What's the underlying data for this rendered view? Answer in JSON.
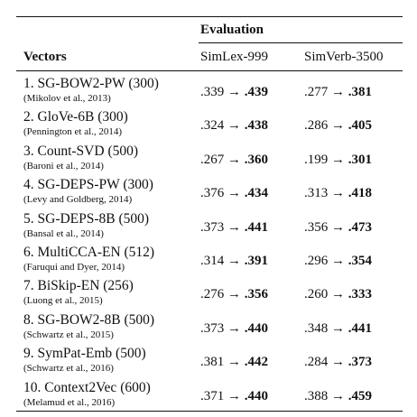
{
  "table": {
    "group_header": "Evaluation",
    "columns": [
      "Vectors",
      "SimLex-999",
      "SimVerb-3500"
    ],
    "arrow": "→",
    "rows": [
      {
        "name": "1. SG-BOW2-PW (300)",
        "citation": "(Mikolov et al., 2013)",
        "simlex": [
          ".339",
          ".439"
        ],
        "simverb": [
          ".277",
          ".381"
        ]
      },
      {
        "name": "2. GloVe-6B (300)",
        "citation": "(Pennington et al., 2014)",
        "simlex": [
          ".324",
          ".438"
        ],
        "simverb": [
          ".286",
          ".405"
        ]
      },
      {
        "name": "3. Count-SVD (500)",
        "citation": "(Baroni et al., 2014)",
        "simlex": [
          ".267",
          ".360"
        ],
        "simverb": [
          ".199",
          ".301"
        ]
      },
      {
        "name": "4. SG-DEPS-PW (300)",
        "citation": "(Levy and Goldberg, 2014)",
        "simlex": [
          ".376",
          ".434"
        ],
        "simverb": [
          ".313",
          ".418"
        ]
      },
      {
        "name": "5. SG-DEPS-8B (500)",
        "citation": "(Bansal et al., 2014)",
        "simlex": [
          ".373",
          ".441"
        ],
        "simverb": [
          ".356",
          ".473"
        ]
      },
      {
        "name": "6. MultiCCA-EN (512)",
        "citation": "(Faruqui and Dyer, 2014)",
        "simlex": [
          ".314",
          ".391"
        ],
        "simverb": [
          ".296",
          ".354"
        ]
      },
      {
        "name": "7. BiSkip-EN (256)",
        "citation": "(Luong et al., 2015)",
        "simlex": [
          ".276",
          ".356"
        ],
        "simverb": [
          ".260",
          ".333"
        ]
      },
      {
        "name": "8. SG-BOW2-8B (500)",
        "citation": "(Schwartz et al., 2015)",
        "simlex": [
          ".373",
          ".440"
        ],
        "simverb": [
          ".348",
          ".441"
        ]
      },
      {
        "name": "9. SymPat-Emb (500)",
        "citation": "(Schwartz et al., 2016)",
        "simlex": [
          ".381",
          ".442"
        ],
        "simverb": [
          ".284",
          ".373"
        ]
      },
      {
        "name": "10. Context2Vec (600)",
        "citation": "(Melamud et al., 2016)",
        "simlex": [
          ".371",
          ".440"
        ],
        "simverb": [
          ".388",
          ".459"
        ]
      }
    ]
  }
}
